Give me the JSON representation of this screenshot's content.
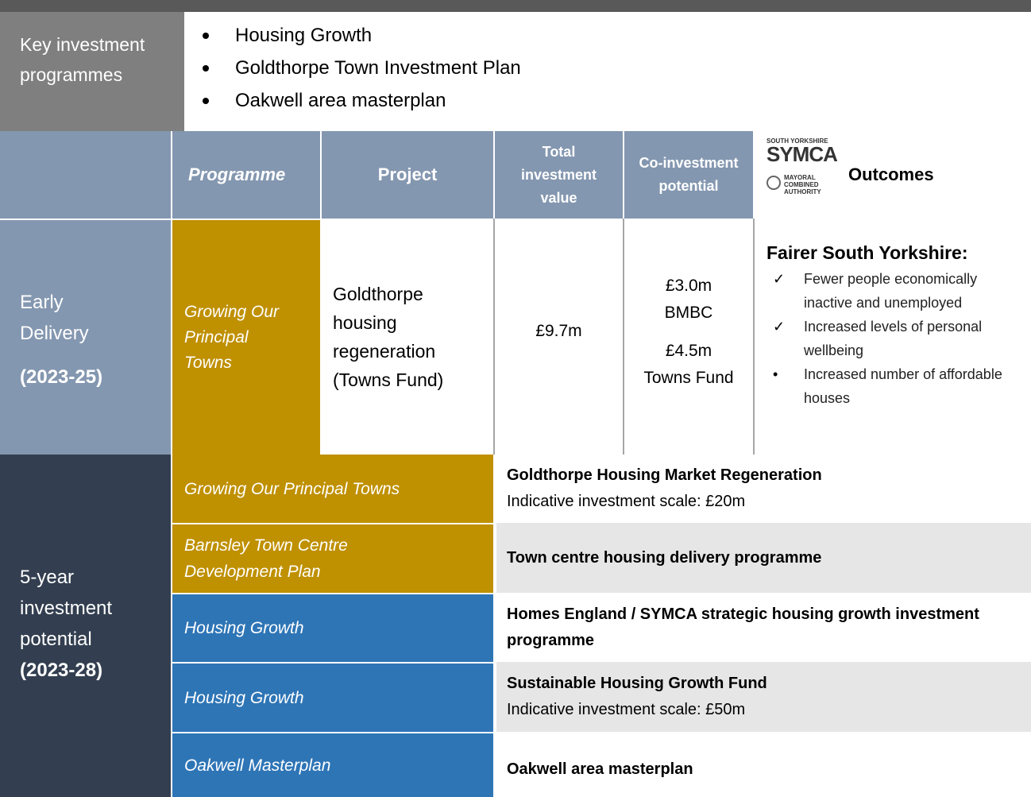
{
  "key_programmes": {
    "label": "Key investment programmes",
    "items": [
      "Housing Growth",
      "Goldthorpe Town Investment Plan",
      "Oakwell area masterplan"
    ]
  },
  "table": {
    "header": {
      "programme": "Programme",
      "project": "Project",
      "total": "Total investment value",
      "co_investment": "Co-investment potential",
      "logo": {
        "region": "SOUTH YORKSHIRE",
        "name": "SYMCA",
        "line1": "MAYORAL",
        "line2": "COMBINED",
        "line3": "AUTHORITY"
      },
      "outcomes": "Outcomes"
    },
    "early": {
      "label": "Early Delivery",
      "period": "(2023-25)",
      "programme": "Growing Our Principal Towns",
      "project": "Goldthorpe housing regeneration (Towns Fund)",
      "total": "£9.7m",
      "co_investment": [
        [
          "£3.0m",
          "BMBC"
        ],
        [
          "£4.5m",
          "Towns Fund"
        ]
      ],
      "outcomes": {
        "heading": "Fairer South Yorkshire:",
        "items": [
          {
            "marker": "✓",
            "text": "Fewer people economically inactive and unemployed"
          },
          {
            "marker": "✓",
            "text": "Increased levels of personal wellbeing"
          },
          {
            "marker": "•",
            "text": "Increased number of affordable houses"
          }
        ]
      }
    },
    "five_year": {
      "label": "5-year investment potential",
      "period": "(2023-28)",
      "rows": [
        {
          "programme": "Growing Our Principal Towns",
          "color": "#bf9000",
          "project": "Goldthorpe Housing Market Regeneration",
          "detail": "Indicative investment scale: £20m",
          "background": "#ffffff"
        },
        {
          "programme": "Barnsley Town Centre Development Plan",
          "color": "#bf9000",
          "project": "Town centre housing delivery programme",
          "background": "#e7e6e6"
        },
        {
          "programme": "Housing Growth",
          "color": "#2e75b6",
          "project": "Homes England / SYMCA strategic housing growth investment programme",
          "background": "#ffffff"
        },
        {
          "programme": "Housing Growth",
          "color": "#2e75b6",
          "project": "Sustainable Housing Growth Fund",
          "detail": "Indicative investment scale: £50m",
          "background": "#e7e6e6"
        },
        {
          "programme": "Oakwell Masterplan",
          "color": "#2e75b6",
          "project": "Oakwell area masterplan",
          "background": "#ffffff"
        }
      ]
    }
  }
}
